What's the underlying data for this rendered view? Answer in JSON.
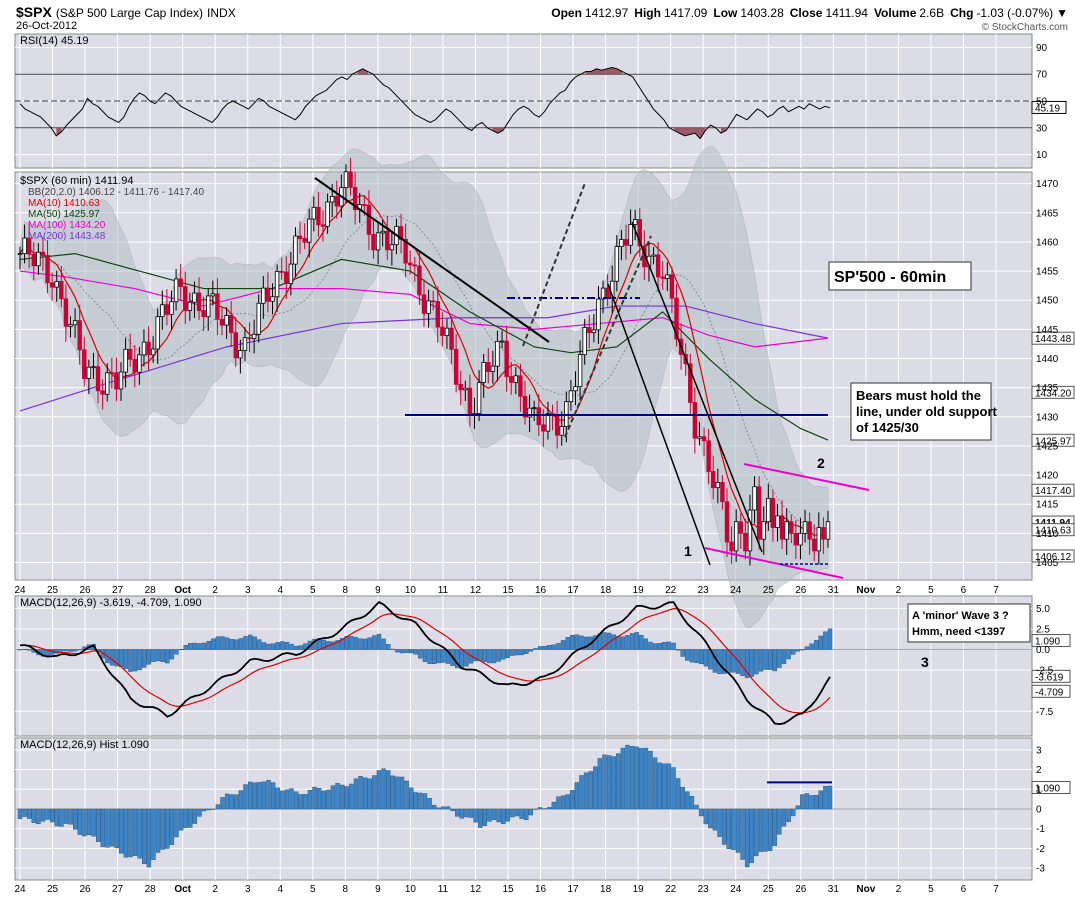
{
  "header": {
    "symbol": "$SPX",
    "name": "(S&P 500 Large Cap Index)",
    "exchange": "INDX",
    "date": "26-Oct-2012",
    "open_label": "Open",
    "open": "1412.97",
    "high_label": "High",
    "high": "1417.09",
    "low_label": "Low",
    "low": "1403.28",
    "close_label": "Close",
    "close": "1411.94",
    "volume_label": "Volume",
    "volume": "2.6B",
    "chg_label": "Chg",
    "chg": "-1.03 (-0.07%)",
    "watermark": "© StockCharts.com"
  },
  "colors": {
    "panel_bg": "#dcdce6",
    "grid": "#ffffff",
    "up": "#000000",
    "down": "#cc0033",
    "ma10": "#dd0000",
    "ma50": "#114411",
    "ma100": "#ee00cc",
    "ma200": "#7733dd",
    "bb": "#9aa5aa",
    "macd_hist": "#3d85c6",
    "trend_blue": "#000099",
    "trend_magenta": "#ee00cc"
  },
  "chart_data": [
    {
      "type": "line",
      "panel": "rsi",
      "legend": "RSI(14) 45.19",
      "last_value": "45.19",
      "ylim": [
        0,
        100
      ],
      "yticks": [
        90,
        70,
        50,
        30,
        10
      ],
      "reference_lines": [
        70,
        50,
        30
      ],
      "values": [
        48,
        44,
        42,
        40,
        38,
        34,
        30,
        24,
        27,
        32,
        36,
        40,
        44,
        52,
        48,
        46,
        42,
        38,
        36,
        34,
        38,
        46,
        52,
        56,
        54,
        50,
        48,
        52,
        56,
        54,
        50,
        46,
        44,
        42,
        40,
        38,
        36,
        34,
        38,
        44,
        48,
        50,
        48,
        46,
        44,
        48,
        52,
        50,
        46,
        44,
        42,
        40,
        38,
        36,
        40,
        46,
        50,
        54,
        56,
        58,
        62,
        66,
        68,
        66,
        70,
        72,
        74,
        72,
        70,
        66,
        62,
        60,
        56,
        52,
        48,
        44,
        40,
        38,
        36,
        34,
        36,
        40,
        44,
        42,
        38,
        34,
        30,
        28,
        32,
        34,
        30,
        28,
        26,
        28,
        34,
        40,
        44,
        46,
        44,
        40,
        38,
        42,
        48,
        52,
        56,
        58,
        64,
        68,
        70,
        72,
        72,
        74,
        73,
        74,
        75,
        74,
        72,
        70,
        68,
        62,
        56,
        50,
        44,
        40,
        36,
        30,
        28,
        26,
        24,
        25,
        26,
        22,
        28,
        32,
        30,
        26,
        28,
        34,
        40,
        38,
        36,
        40,
        44,
        42,
        38,
        40,
        44,
        46,
        42,
        44,
        46,
        44,
        48,
        46,
        44,
        46,
        45
      ]
    },
    {
      "type": "candlestick",
      "panel": "price",
      "legend": [
        "$SPX (60 min) 1411.94",
        "BB(20,2.0) 1406.12 - 1411.76 - 1417.40",
        "MA(10) 1410.63",
        "MA(50) 1425.97",
        "MA(100) 1434.20",
        "MA(200) 1443.48"
      ],
      "ylim": [
        1402,
        1472
      ],
      "yticks": [
        1470,
        1465,
        1460,
        1455,
        1450,
        1445,
        1440,
        1435,
        1430,
        1425,
        1420,
        1415,
        1410,
        1405
      ],
      "y_tag_labels": [
        "1443.48",
        "1434.20",
        "1425.97",
        "1417.40",
        "1411.94",
        "1410.63",
        "1406.12"
      ],
      "y_tag_values": [
        1443.48,
        1434.2,
        1425.97,
        1417.4,
        1411.94,
        1410.63,
        1406.12
      ],
      "anchors_x": [
        0,
        7,
        14,
        21,
        28,
        35,
        42,
        49,
        56,
        63,
        70,
        77,
        84,
        91,
        98,
        105,
        112,
        119,
        126,
        133,
        140,
        147,
        154
      ],
      "anchors_y": [
        1458,
        1455,
        1438,
        1436,
        1443,
        1452,
        1448,
        1442,
        1454,
        1462,
        1470,
        1462,
        1458,
        1446,
        1432,
        1442,
        1428,
        1431,
        1450,
        1462,
        1455,
        1430,
        1410
      ],
      "tail": [
        1407,
        1412,
        1410,
        1407,
        1414,
        1418,
        1409,
        1412,
        1416,
        1411,
        1413,
        1409,
        1412,
        1410,
        1408,
        1410,
        1412,
        1409,
        1407,
        1411,
        1409,
        1412
      ],
      "annotations": [
        "SP'500 - 60min",
        "Bears must hold the",
        "line, under old support",
        "of 1425/30",
        "1",
        "2"
      ]
    },
    {
      "type": "line",
      "panel": "macd",
      "legend": "MACD(12,26,9) -3.619, -4.709, 1.090",
      "ylim": [
        -10.5,
        6.5
      ],
      "yticks": [
        5.0,
        2.5,
        0.0,
        -2.5,
        -7.5
      ],
      "tick_labels": [
        "5.0",
        "2.5",
        "0.0",
        "-2.5",
        "-7.5"
      ],
      "tag_labels": [
        "1.090",
        "-3.619",
        "-4.709"
      ],
      "tag_values": [
        1.09,
        -3.619,
        -4.709
      ],
      "annotations": [
        "A 'minor' Wave 3 ?",
        "Hmm, need <1397",
        "3"
      ]
    },
    {
      "type": "bar",
      "panel": "hist",
      "legend": "MACD(12,26,9) Hist 1.090",
      "ylim": [
        -3.6,
        3.6
      ],
      "yticks": [
        3,
        2,
        1,
        0,
        -1,
        -2,
        -3
      ],
      "tick_labels": [
        "3",
        "2",
        "1",
        "0",
        "-1",
        "-2",
        "-3"
      ],
      "tag_label": "1.090",
      "tag_value": 1.09
    }
  ],
  "x_axis": {
    "labels": [
      "24",
      "25",
      "26",
      "27",
      "28",
      "Oct",
      "2",
      "3",
      "4",
      "5",
      "8",
      "9",
      "10",
      "11",
      "12",
      "15",
      "16",
      "17",
      "18",
      "19",
      "22",
      "23",
      "24",
      "25",
      "26",
      "31",
      "Nov",
      "2",
      "5",
      "6",
      "7"
    ],
    "bold": [
      "Oct",
      "Nov"
    ]
  }
}
